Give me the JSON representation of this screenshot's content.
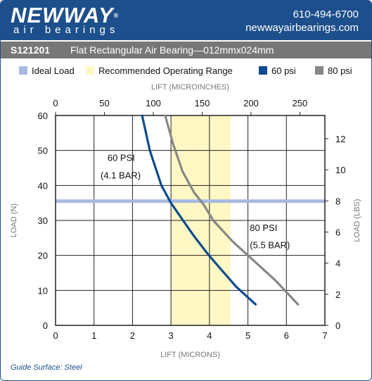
{
  "header": {
    "brand": "NEWWAY",
    "registered": "®",
    "tagline": "air bearings",
    "phone": "610-494-6700",
    "website": "newwayairbearings.com",
    "brand_color": "#1d4f8c"
  },
  "titlebar": {
    "part_number": "S121201",
    "description": "Flat Rectangular Air Bearing—012mmx024mm"
  },
  "footer": {
    "note": "Guide Surface: Steel"
  },
  "chart_data": {
    "type": "line",
    "legend": [
      {
        "label": "Ideal Load",
        "color": "#a9b9e0"
      },
      {
        "label": "Recommended Operating Range",
        "color": "#fff8c4"
      },
      {
        "label": "60 psi",
        "color": "#0d4b8f"
      },
      {
        "label": "80 psi",
        "color": "#878787"
      }
    ],
    "xlabel_bottom": "LIFT (MICRONS)",
    "xlabel_top": "LIFT (MICROINCHES)",
    "ylabel_left": "LOAD (N)",
    "ylabel_right": "LOAD (LBS)",
    "xlim": [
      0,
      7
    ],
    "ylim": [
      0,
      60
    ],
    "x_ticks": [
      "0",
      "1",
      "2",
      "3",
      "4",
      "5",
      "6",
      "7"
    ],
    "y_ticks": [
      "0",
      "10",
      "20",
      "30",
      "40",
      "50",
      "60"
    ],
    "top_ticks": [
      "0",
      "50",
      "100",
      "150",
      "200",
      "250"
    ],
    "right_ticks": [
      "0",
      "2",
      "4",
      "6",
      "8",
      "10",
      "12"
    ],
    "grid": true,
    "ideal_load_n": 35.5,
    "operating_range_microns": [
      3.0,
      4.55
    ],
    "series": [
      {
        "name": "60 psi",
        "color": "#0d4b8f",
        "points": [
          [
            2.25,
            60
          ],
          [
            2.45,
            50
          ],
          [
            2.75,
            40
          ],
          [
            3.0,
            35
          ],
          [
            3.25,
            31
          ],
          [
            3.6,
            25.5
          ],
          [
            3.95,
            20.5
          ],
          [
            4.3,
            16
          ],
          [
            4.7,
            11
          ],
          [
            5.2,
            6
          ]
        ]
      },
      {
        "name": "80 psi",
        "color": "#878787",
        "points": [
          [
            2.85,
            60
          ],
          [
            3.05,
            52
          ],
          [
            3.3,
            44
          ],
          [
            3.6,
            38
          ],
          [
            3.85,
            34.5
          ],
          [
            4.1,
            30
          ],
          [
            4.6,
            24
          ],
          [
            5.2,
            18
          ],
          [
            5.7,
            13
          ],
          [
            6.3,
            6
          ]
        ]
      }
    ],
    "annotations": [
      {
        "text": "60 PSI",
        "x": 1.35,
        "y": 47
      },
      {
        "text": "(4.1 BAR)",
        "x": 1.17,
        "y": 42
      },
      {
        "text": "80 PSI",
        "x": 5.05,
        "y": 27
      },
      {
        "text": "(5.5 BAR)",
        "x": 5.05,
        "y": 22
      }
    ]
  }
}
